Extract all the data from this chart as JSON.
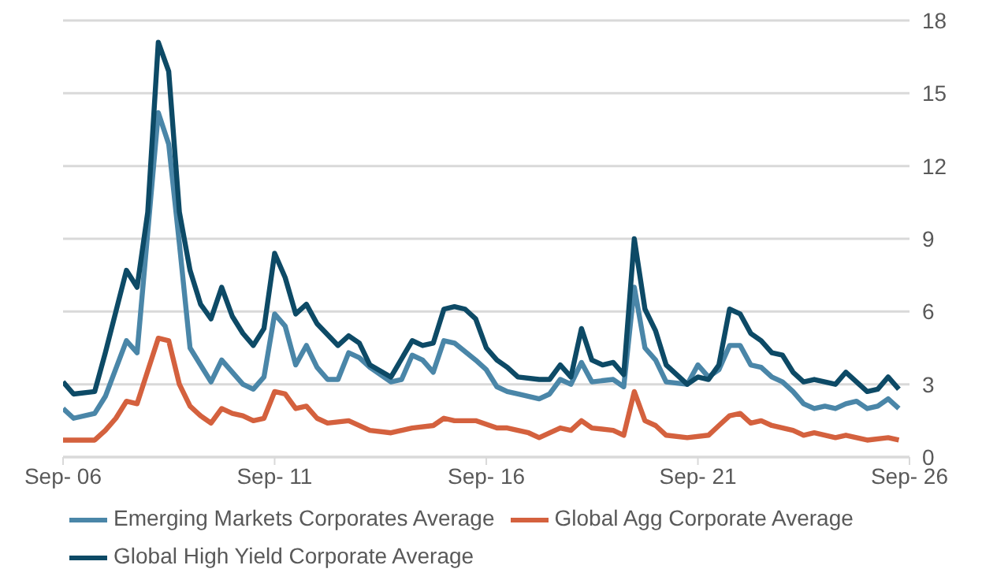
{
  "chart_data": {
    "type": "line",
    "xlim": [
      "2006-09",
      "2026-09"
    ],
    "xticks": [
      {
        "value": "2006-09",
        "label": "Sep- 06"
      },
      {
        "value": "2011-09",
        "label": "Sep- 11"
      },
      {
        "value": "2016-09",
        "label": "Sep- 16"
      },
      {
        "value": "2021-09",
        "label": "Sep- 21"
      },
      {
        "value": "2026-09",
        "label": "Sep- 26"
      }
    ],
    "ylim": [
      0,
      18
    ],
    "yticks": [
      0,
      3,
      6,
      9,
      12,
      15,
      18
    ],
    "grid": "y",
    "legend": "bottom",
    "marker": "none",
    "line_style": "solid",
    "series": [
      {
        "name": "Emerging Markets Corporates Average",
        "color": "#4a86a8",
        "x": [
          "2006-09",
          "2006-12",
          "2007-06",
          "2007-09",
          "2008-03",
          "2008-06",
          "2008-12",
          "2009-03",
          "2009-06",
          "2009-09",
          "2010-03",
          "2010-06",
          "2010-12",
          "2011-03",
          "2011-06",
          "2011-09",
          "2011-12",
          "2012-03",
          "2012-06",
          "2012-09",
          "2012-12",
          "2013-03",
          "2013-06",
          "2013-09",
          "2013-12",
          "2014-06",
          "2014-09",
          "2014-12",
          "2015-03",
          "2015-06",
          "2015-09",
          "2015-12",
          "2016-06",
          "2016-09",
          "2016-12",
          "2017-03",
          "2017-06",
          "2017-12",
          "2018-03",
          "2018-06",
          "2018-09",
          "2018-12",
          "2019-03",
          "2019-09",
          "2019-12",
          "2020-03",
          "2020-06",
          "2020-09",
          "2020-12",
          "2021-06",
          "2021-09",
          "2021-12",
          "2022-03",
          "2022-06",
          "2022-09",
          "2022-12",
          "2023-03",
          "2023-06",
          "2023-09",
          "2023-12",
          "2024-03",
          "2024-06",
          "2024-09",
          "2024-12",
          "2025-03",
          "2025-06",
          "2025-09",
          "2025-12",
          "2026-03",
          "2026-06"
        ],
        "values": [
          2.0,
          1.6,
          1.8,
          2.5,
          4.8,
          4.3,
          14.2,
          12.9,
          8.8,
          4.5,
          3.1,
          4.0,
          3.0,
          2.8,
          3.3,
          5.9,
          5.4,
          3.8,
          4.6,
          3.7,
          3.2,
          3.2,
          4.3,
          4.1,
          3.7,
          3.1,
          3.2,
          4.2,
          4.0,
          3.5,
          4.8,
          4.7,
          4.0,
          3.6,
          2.9,
          2.7,
          2.6,
          2.4,
          2.6,
          3.2,
          3.0,
          3.9,
          3.1,
          3.2,
          2.9,
          7.0,
          4.5,
          4.0,
          3.1,
          3.0,
          3.8,
          3.3,
          3.6,
          4.6,
          4.6,
          3.8,
          3.7,
          3.3,
          3.1,
          2.7,
          2.2,
          2.0,
          2.1,
          2.0,
          2.2,
          2.3,
          2.0,
          2.1,
          2.4,
          2.0
        ]
      },
      {
        "name": "Global Agg Corporate Average",
        "color": "#d4613e",
        "x": [
          "2006-09",
          "2006-12",
          "2007-06",
          "2007-09",
          "2007-12",
          "2008-03",
          "2008-06",
          "2008-12",
          "2009-03",
          "2009-06",
          "2009-09",
          "2009-12",
          "2010-03",
          "2010-06",
          "2010-09",
          "2010-12",
          "2011-03",
          "2011-06",
          "2011-09",
          "2011-12",
          "2012-03",
          "2012-06",
          "2012-09",
          "2012-12",
          "2013-06",
          "2013-12",
          "2014-06",
          "2014-12",
          "2015-06",
          "2015-09",
          "2015-12",
          "2016-06",
          "2016-12",
          "2017-03",
          "2017-09",
          "2017-12",
          "2018-06",
          "2018-09",
          "2018-12",
          "2019-03",
          "2019-09",
          "2019-12",
          "2020-03",
          "2020-06",
          "2020-09",
          "2020-12",
          "2021-06",
          "2021-12",
          "2022-03",
          "2022-06",
          "2022-09",
          "2022-12",
          "2023-03",
          "2023-06",
          "2023-12",
          "2024-03",
          "2024-06",
          "2024-12",
          "2025-03",
          "2025-09",
          "2026-03",
          "2026-06"
        ],
        "values": [
          0.7,
          0.7,
          0.7,
          1.1,
          1.6,
          2.3,
          2.2,
          4.9,
          4.8,
          3.0,
          2.1,
          1.7,
          1.4,
          2.0,
          1.8,
          1.7,
          1.5,
          1.6,
          2.7,
          2.6,
          2.0,
          2.1,
          1.6,
          1.4,
          1.5,
          1.1,
          1.0,
          1.2,
          1.3,
          1.6,
          1.5,
          1.5,
          1.2,
          1.2,
          1.0,
          0.8,
          1.2,
          1.1,
          1.5,
          1.2,
          1.1,
          0.9,
          2.7,
          1.5,
          1.3,
          0.9,
          0.8,
          0.9,
          1.3,
          1.7,
          1.8,
          1.4,
          1.5,
          1.3,
          1.1,
          0.9,
          1.0,
          0.8,
          0.9,
          0.7,
          0.8,
          0.7
        ]
      },
      {
        "name": "Global High Yield Corporate Average",
        "color": "#0d4a66",
        "x": [
          "2006-09",
          "2006-12",
          "2007-06",
          "2007-09",
          "2008-03",
          "2008-06",
          "2008-09",
          "2008-12",
          "2009-03",
          "2009-06",
          "2009-09",
          "2009-12",
          "2010-03",
          "2010-06",
          "2010-09",
          "2010-12",
          "2011-03",
          "2011-06",
          "2011-09",
          "2011-12",
          "2012-03",
          "2012-06",
          "2012-09",
          "2013-03",
          "2013-06",
          "2013-09",
          "2013-12",
          "2014-06",
          "2014-12",
          "2015-03",
          "2015-06",
          "2015-09",
          "2015-12",
          "2016-03",
          "2016-06",
          "2016-09",
          "2016-12",
          "2017-03",
          "2017-06",
          "2017-12",
          "2018-03",
          "2018-06",
          "2018-09",
          "2018-12",
          "2019-03",
          "2019-06",
          "2019-09",
          "2019-12",
          "2020-03",
          "2020-06",
          "2020-09",
          "2020-12",
          "2021-06",
          "2021-09",
          "2021-12",
          "2022-03",
          "2022-06",
          "2022-09",
          "2022-12",
          "2023-03",
          "2023-06",
          "2023-09",
          "2023-12",
          "2024-03",
          "2024-06",
          "2024-09",
          "2024-12",
          "2025-03",
          "2025-06",
          "2025-09",
          "2025-12",
          "2026-03",
          "2026-06"
        ],
        "values": [
          3.1,
          2.6,
          2.7,
          4.3,
          7.7,
          7.0,
          10.1,
          17.1,
          15.9,
          10.1,
          7.7,
          6.3,
          5.7,
          7.0,
          5.8,
          5.1,
          4.6,
          5.3,
          8.4,
          7.4,
          5.9,
          6.3,
          5.5,
          4.6,
          5.0,
          4.7,
          3.8,
          3.3,
          4.8,
          4.6,
          4.7,
          6.1,
          6.2,
          6.1,
          5.7,
          4.5,
          4.0,
          3.7,
          3.3,
          3.2,
          3.2,
          3.8,
          3.3,
          5.3,
          4.0,
          3.8,
          3.9,
          3.4,
          9.0,
          6.1,
          5.2,
          3.8,
          3.0,
          3.3,
          3.2,
          3.8,
          6.1,
          5.9,
          5.1,
          4.8,
          4.3,
          4.2,
          3.5,
          3.1,
          3.2,
          3.1,
          3.0,
          3.5,
          3.1,
          2.7,
          2.8,
          3.3,
          2.8
        ]
      }
    ]
  }
}
